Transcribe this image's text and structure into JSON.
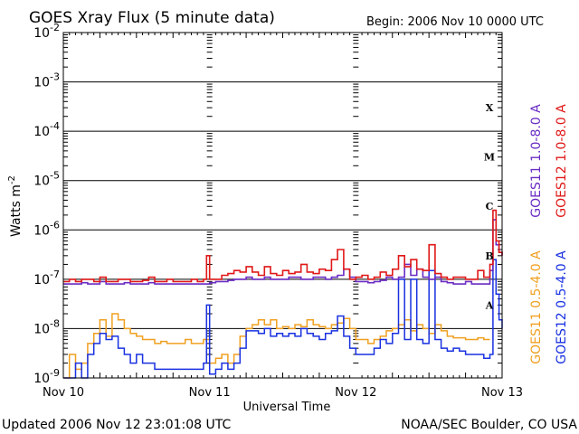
{
  "chart_data": {
    "type": "line",
    "title": "GOES Xray Flux (5 minute data)",
    "begin_text": "Begin:  2006 Nov 10 0000 UTC",
    "ylabel": "Watts m",
    "ylabel_sup": "-2",
    "xlabel": "Universal Time",
    "yscale": "log",
    "ylim": [
      1e-09,
      0.01
    ],
    "ytick_labels": [
      {
        "base": "10",
        "exp": "-2",
        "value": 0.01
      },
      {
        "base": "10",
        "exp": "-3",
        "value": 0.001
      },
      {
        "base": "10",
        "exp": "-4",
        "value": 0.0001
      },
      {
        "base": "10",
        "exp": "-5",
        "value": 1e-05
      },
      {
        "base": "10",
        "exp": "-6",
        "value": 1e-06
      },
      {
        "base": "10",
        "exp": "-7",
        "value": 1e-07
      },
      {
        "base": "10",
        "exp": "-8",
        "value": 1e-08
      },
      {
        "base": "10",
        "exp": "-9",
        "value": 1e-09
      }
    ],
    "xlim": [
      0,
      72
    ],
    "x_units": "hours since 2006 Nov 10 0000 UTC",
    "xtick_labels": [
      {
        "label": "Nov 10",
        "x": 0
      },
      {
        "label": "Nov 11",
        "x": 24
      },
      {
        "label": "Nov 12",
        "x": 48
      },
      {
        "label": "Nov 13",
        "x": 72
      }
    ],
    "flare_classes": [
      {
        "label": "X",
        "value": 0.0003
      },
      {
        "label": "M",
        "value": 3e-05
      },
      {
        "label": "C",
        "value": 3e-06
      },
      {
        "label": "B",
        "value": 3e-07
      },
      {
        "label": "A",
        "value": 3e-08
      }
    ],
    "grid": true,
    "legend_position": "right",
    "series": [
      {
        "name": "GOES11 1.0-8.0 A",
        "color": "#6a2cc4",
        "x": [
          0,
          1,
          2,
          3,
          4,
          5,
          6,
          7,
          8,
          9,
          10,
          11,
          12,
          13,
          14,
          15,
          16,
          17,
          18,
          19,
          20,
          21,
          22,
          23,
          24,
          25,
          26,
          27,
          28,
          29,
          30,
          31,
          32,
          33,
          34,
          35,
          36,
          37,
          38,
          39,
          40,
          41,
          42,
          43,
          44,
          45,
          46,
          47,
          48,
          49,
          50,
          51,
          52,
          53,
          54,
          55,
          56,
          57,
          58,
          59,
          60,
          61,
          62,
          63,
          64,
          65,
          66,
          67,
          68,
          69,
          70,
          70.5,
          71,
          71.5,
          72
        ],
        "y": [
          8e-08,
          8e-08,
          8e-08,
          8.5e-08,
          8e-08,
          8e-08,
          9e-08,
          8e-08,
          8e-08,
          8e-08,
          8.5e-08,
          8e-08,
          8e-08,
          8e-08,
          8.5e-08,
          8e-08,
          8e-08,
          8e-08,
          8e-08,
          8e-08,
          8e-08,
          8e-08,
          8e-08,
          8e-08,
          8.5e-08,
          9e-08,
          9e-08,
          9.5e-08,
          1e-07,
          1e-07,
          1.1e-07,
          1e-07,
          1e-07,
          1.1e-07,
          1e-07,
          1e-07,
          1e-07,
          1.1e-07,
          1.1e-07,
          1e-07,
          1e-07,
          1.1e-07,
          1.1e-07,
          1e-07,
          1.1e-07,
          1.2e-07,
          1.6e-07,
          1.1e-07,
          9e-08,
          9e-08,
          8.5e-08,
          9e-08,
          9.5e-08,
          1.1e-07,
          1e-07,
          1.1e-07,
          2e-07,
          1.2e-07,
          1.6e-07,
          1.1e-07,
          1e-07,
          1.1e-07,
          9e-08,
          8.5e-08,
          8e-08,
          8e-08,
          9e-08,
          8e-08,
          8e-08,
          8e-08,
          1.5e-07,
          1.6e-06,
          5e-07,
          3.5e-07,
          3e-07
        ]
      },
      {
        "name": "GOES12 1.0-8.0 A",
        "color": "#e01818",
        "x": [
          0,
          1,
          2,
          3,
          4,
          5,
          6,
          7,
          8,
          9,
          10,
          11,
          12,
          13,
          14,
          15,
          16,
          17,
          18,
          19,
          20,
          21,
          22,
          23,
          23.5,
          24,
          25,
          26,
          27,
          28,
          29,
          30,
          31,
          32,
          33,
          34,
          35,
          36,
          37,
          38,
          39,
          40,
          41,
          42,
          43,
          44,
          45,
          46,
          47,
          48,
          49,
          50,
          51,
          52,
          53,
          54,
          55,
          56,
          57,
          58,
          59,
          60,
          61,
          62,
          63,
          64,
          65,
          66,
          67,
          68,
          69,
          70,
          70.5,
          71,
          71.5,
          72
        ],
        "y": [
          9e-08,
          1e-07,
          9e-08,
          1e-07,
          1e-07,
          9e-08,
          1.1e-07,
          9e-08,
          9e-08,
          1e-07,
          1e-07,
          9e-08,
          9e-08,
          9.5e-08,
          1.1e-07,
          9e-08,
          9e-08,
          1e-07,
          9e-08,
          9e-08,
          9e-08,
          1e-07,
          9e-08,
          1e-07,
          3e-07,
          1e-07,
          1e-07,
          1.2e-07,
          1.3e-07,
          1.5e-07,
          1.4e-07,
          1.8e-07,
          1.4e-07,
          1.2e-07,
          1.8e-07,
          1.3e-07,
          1.2e-07,
          1.5e-07,
          1.3e-07,
          1.4e-07,
          2e-07,
          1.4e-07,
          1.3e-07,
          1.6e-07,
          1.5e-07,
          2.5e-07,
          4e-07,
          1.6e-07,
          1e-07,
          1.1e-07,
          1.2e-07,
          1e-07,
          1.1e-07,
          1.4e-07,
          1.2e-07,
          1.6e-07,
          3e-07,
          1.8e-07,
          2.5e-07,
          1.6e-07,
          1.5e-07,
          5e-07,
          1.3e-07,
          1.1e-07,
          1e-07,
          1.1e-07,
          1.1e-07,
          1e-07,
          1e-07,
          1.5e-07,
          1.1e-07,
          2e-07,
          2.5e-06,
          6e-07,
          3.5e-07,
          3e-07
        ]
      },
      {
        "name": "GOES11 0.5-4.0 A",
        "color": "#f0a020",
        "x": [
          0,
          1,
          2,
          3,
          4,
          5,
          6,
          7,
          8,
          9,
          10,
          11,
          12,
          13,
          14,
          15,
          16,
          17,
          18,
          19,
          20,
          21,
          22,
          23,
          24,
          25,
          26,
          27,
          28,
          29,
          30,
          31,
          32,
          33,
          34,
          35,
          36,
          37,
          38,
          39,
          40,
          41,
          42,
          43,
          44,
          45,
          46,
          47,
          48,
          49,
          50,
          51,
          52,
          53,
          54,
          55,
          56,
          57,
          58,
          59,
          60,
          61,
          62,
          63,
          64,
          65,
          66,
          67,
          68,
          69,
          70
        ],
        "y": [
          1e-09,
          3e-09,
          1.5e-09,
          2e-09,
          5e-09,
          8e-09,
          1.5e-08,
          7e-09,
          2e-08,
          1.5e-08,
          1e-08,
          8e-09,
          7e-09,
          6e-09,
          6e-09,
          5e-09,
          5.5e-09,
          5e-09,
          5e-09,
          5e-09,
          6e-09,
          5e-09,
          5e-09,
          6e-09,
          2e-09,
          2.5e-09,
          3e-09,
          2e-09,
          3e-09,
          7e-09,
          1e-08,
          1.2e-08,
          1.5e-08,
          1.2e-08,
          1.5e-08,
          1e-08,
          1.1e-08,
          1e-08,
          1.2e-08,
          1.1e-08,
          1.5e-08,
          1.2e-08,
          1.1e-08,
          1e-08,
          1.2e-08,
          1.3e-08,
          1.6e-08,
          1e-08,
          6e-09,
          6e-09,
          5e-09,
          6e-09,
          7e-09,
          9e-09,
          1e-08,
          1.2e-08,
          1.5e-08,
          9e-09,
          1.2e-08,
          1e-08,
          8e-09,
          1.2e-08,
          9e-09,
          7e-09,
          6.5e-09,
          6.5e-09,
          6e-09,
          6e-09,
          6.5e-09,
          6e-09,
          6e-09
        ]
      },
      {
        "name": "GOES12 0.5-4.0 A",
        "color": "#1830e0",
        "x": [
          0,
          1,
          2,
          3,
          4,
          5,
          6,
          7,
          8,
          9,
          10,
          11,
          12,
          13,
          14,
          15,
          16,
          17,
          18,
          19,
          20,
          21,
          22,
          23,
          23.5,
          24,
          25,
          26,
          27,
          28,
          29,
          30,
          31,
          32,
          33,
          34,
          35,
          36,
          37,
          38,
          39,
          40,
          41,
          42,
          43,
          44,
          45,
          46,
          47,
          48,
          49,
          50,
          51,
          52,
          53,
          54,
          55,
          56,
          57,
          58,
          59,
          60,
          61,
          62,
          63,
          64,
          65,
          66,
          67,
          68,
          69,
          70,
          70.5,
          71,
          71.5,
          72
        ],
        "y": [
          1e-09,
          1e-09,
          2e-09,
          1e-09,
          3e-09,
          5e-09,
          8e-09,
          6e-09,
          7e-09,
          4e-09,
          3e-09,
          2e-09,
          3e-09,
          2e-09,
          2e-09,
          1.5e-09,
          1.5e-09,
          1.5e-09,
          1.5e-09,
          1.5e-09,
          1.5e-09,
          1.5e-09,
          1.5e-09,
          2e-09,
          3e-08,
          1.2e-09,
          1.5e-09,
          2e-09,
          1.5e-09,
          2e-09,
          4e-09,
          9e-09,
          9e-09,
          8e-09,
          1e-08,
          7e-09,
          8e-09,
          7e-09,
          8e-09,
          7e-09,
          1e-08,
          8e-09,
          7e-09,
          6e-09,
          8e-09,
          9e-09,
          1.8e-08,
          7e-09,
          4e-09,
          3e-09,
          3e-09,
          3e-09,
          4e-09,
          6e-09,
          5e-09,
          8e-09,
          1e-07,
          6e-09,
          1e-07,
          6e-09,
          5e-09,
          1.5e-07,
          6e-09,
          4e-09,
          3.5e-09,
          4e-09,
          3.5e-09,
          3e-09,
          3e-09,
          3e-09,
          2.5e-09,
          3e-09,
          2.5e-07,
          5e-08,
          1.5e-08,
          1e-08
        ]
      }
    ]
  },
  "footer_left": "Updated 2006 Nov 12 23:01:08 UTC",
  "footer_right": "NOAA/SEC Boulder, CO USA"
}
